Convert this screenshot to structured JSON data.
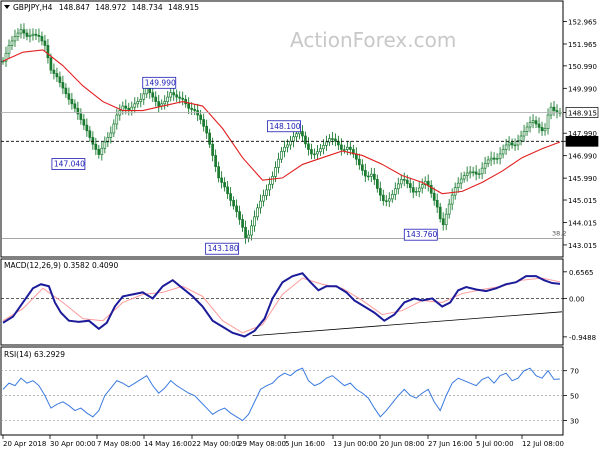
{
  "header": {
    "symbol": "GBPJPY,H4",
    "open": "148.847",
    "high": "148.972",
    "low": "148.734",
    "close": "148.915"
  },
  "watermark": "ActionForex.com",
  "colors": {
    "candle": "#1a7a30",
    "ma": "#e21f1f",
    "macd": "#1c1c9a",
    "signal": "#ff9b9b",
    "rsi": "#3a7ae0",
    "annotation_border": "#1c1cb4",
    "grid": "#000000"
  },
  "price_axis": {
    "ticks": [
      "152.965",
      "151.965",
      "150.990",
      "149.990",
      "148.915",
      "147.990",
      "147.630",
      "146.990",
      "145.990",
      "145.015",
      "144.015",
      "143.015"
    ],
    "current_price": "148.915",
    "level_price": "147.630"
  },
  "annotations": [
    {
      "label": "149.990"
    },
    {
      "label": "147.040"
    },
    {
      "label": "148.100"
    },
    {
      "label": "143.180"
    },
    {
      "label": "143.760"
    }
  ],
  "fib_label": "38.2",
  "macd": {
    "title": "MACD(12,26,9) 0.3582 0.4090",
    "ticks": [
      "0.6565",
      "0.00",
      "-0.9488"
    ]
  },
  "rsi": {
    "title": "RSI(14) 63.2929",
    "ticks": [
      "70",
      "50",
      "30"
    ]
  },
  "time_axis": {
    "labels": [
      "20 Apr 2018",
      "30 Apr 00:00",
      "7 May 08:00",
      "14 May 16:00",
      "22 May 00:00",
      "29 May 08:00",
      "5 Jun 16:00",
      "13 Jun 00:00",
      "20 Jun 08:00",
      "27 Jun 16:00",
      "5 Jul 00:00",
      "12 Jul 08:00"
    ]
  },
  "chart_data": {
    "type": "line",
    "price_path": [
      [
        0,
        151.2
      ],
      [
        6,
        151.9
      ],
      [
        12,
        152.3
      ],
      [
        18,
        152.6
      ],
      [
        24,
        152.3
      ],
      [
        30,
        152.4
      ],
      [
        36,
        152.3
      ],
      [
        42,
        151.9
      ],
      [
        48,
        150.8
      ],
      [
        54,
        150.5
      ],
      [
        60,
        150.0
      ],
      [
        66,
        149.5
      ],
      [
        72,
        149.1
      ],
      [
        78,
        148.6
      ],
      [
        84,
        148.1
      ],
      [
        90,
        147.5
      ],
      [
        96,
        147.04
      ],
      [
        102,
        147.6
      ],
      [
        108,
        148.0
      ],
      [
        114,
        148.8
      ],
      [
        120,
        149.2
      ],
      [
        126,
        149.0
      ],
      [
        132,
        149.3
      ],
      [
        138,
        149.5
      ],
      [
        144,
        149.99
      ],
      [
        150,
        149.6
      ],
      [
        156,
        149.2
      ],
      [
        162,
        149.4
      ],
      [
        168,
        149.8
      ],
      [
        174,
        149.6
      ],
      [
        180,
        149.5
      ],
      [
        186,
        149.1
      ],
      [
        192,
        149.0
      ],
      [
        198,
        148.6
      ],
      [
        204,
        148.0
      ],
      [
        210,
        147.0
      ],
      [
        216,
        146.0
      ],
      [
        222,
        145.6
      ],
      [
        228,
        145.0
      ],
      [
        234,
        144.5
      ],
      [
        240,
        143.8
      ],
      [
        244,
        143.18
      ],
      [
        250,
        144.0
      ],
      [
        256,
        144.8
      ],
      [
        262,
        145.3
      ],
      [
        268,
        145.8
      ],
      [
        274,
        146.6
      ],
      [
        280,
        147.3
      ],
      [
        286,
        147.5
      ],
      [
        292,
        147.9
      ],
      [
        298,
        148.1
      ],
      [
        304,
        147.4
      ],
      [
        310,
        147.0
      ],
      [
        316,
        147.2
      ],
      [
        322,
        147.5
      ],
      [
        328,
        147.8
      ],
      [
        334,
        147.6
      ],
      [
        340,
        147.2
      ],
      [
        346,
        147.4
      ],
      [
        352,
        147.0
      ],
      [
        358,
        146.5
      ],
      [
        364,
        146.0
      ],
      [
        370,
        146.2
      ],
      [
        376,
        145.4
      ],
      [
        382,
        144.9
      ],
      [
        388,
        145.1
      ],
      [
        394,
        145.6
      ],
      [
        400,
        146.0
      ],
      [
        406,
        145.7
      ],
      [
        412,
        145.3
      ],
      [
        418,
        145.6
      ],
      [
        424,
        145.9
      ],
      [
        430,
        145.2
      ],
      [
        436,
        144.6
      ],
      [
        440,
        143.76
      ],
      [
        446,
        144.7
      ],
      [
        452,
        145.5
      ],
      [
        458,
        145.9
      ],
      [
        464,
        146.2
      ],
      [
        470,
        146.3
      ],
      [
        476,
        146.1
      ],
      [
        482,
        146.6
      ],
      [
        488,
        146.9
      ],
      [
        494,
        146.8
      ],
      [
        500,
        147.2
      ],
      [
        506,
        147.6
      ],
      [
        512,
        147.4
      ],
      [
        518,
        147.8
      ],
      [
        524,
        148.2
      ],
      [
        530,
        148.6
      ],
      [
        536,
        148.3
      ],
      [
        542,
        148.0
      ],
      [
        548,
        149.2
      ],
      [
        554,
        148.9
      ],
      [
        558,
        148.915
      ]
    ],
    "ma_path": [
      [
        0,
        151.2
      ],
      [
        20,
        151.6
      ],
      [
        40,
        151.7
      ],
      [
        60,
        151.0
      ],
      [
        80,
        150.1
      ],
      [
        100,
        149.4
      ],
      [
        120,
        149.0
      ],
      [
        140,
        149.0
      ],
      [
        160,
        149.2
      ],
      [
        180,
        149.4
      ],
      [
        200,
        149.2
      ],
      [
        220,
        148.2
      ],
      [
        240,
        146.9
      ],
      [
        260,
        145.9
      ],
      [
        280,
        146.0
      ],
      [
        300,
        146.6
      ],
      [
        320,
        146.9
      ],
      [
        340,
        147.2
      ],
      [
        360,
        147.0
      ],
      [
        380,
        146.6
      ],
      [
        400,
        146.1
      ],
      [
        420,
        145.8
      ],
      [
        440,
        145.3
      ],
      [
        460,
        145.4
      ],
      [
        480,
        145.8
      ],
      [
        500,
        146.3
      ],
      [
        520,
        146.9
      ],
      [
        540,
        147.3
      ],
      [
        558,
        147.6
      ]
    ],
    "macd_path": [
      [
        0,
        -0.6
      ],
      [
        10,
        -0.45
      ],
      [
        20,
        -0.1
      ],
      [
        30,
        0.25
      ],
      [
        38,
        0.35
      ],
      [
        46,
        0.3
      ],
      [
        52,
        -0.1
      ],
      [
        58,
        -0.35
      ],
      [
        66,
        -0.55
      ],
      [
        76,
        -0.58
      ],
      [
        86,
        -0.55
      ],
      [
        96,
        -0.75
      ],
      [
        104,
        -0.6
      ],
      [
        112,
        -0.2
      ],
      [
        120,
        0.05
      ],
      [
        130,
        0.1
      ],
      [
        140,
        0.15
      ],
      [
        150,
        0.0
      ],
      [
        160,
        0.3
      ],
      [
        170,
        0.45
      ],
      [
        180,
        0.25
      ],
      [
        190,
        0.05
      ],
      [
        200,
        -0.2
      ],
      [
        210,
        -0.55
      ],
      [
        220,
        -0.7
      ],
      [
        230,
        -0.85
      ],
      [
        242,
        -0.94
      ],
      [
        252,
        -0.8
      ],
      [
        262,
        -0.5
      ],
      [
        270,
        0.0
      ],
      [
        280,
        0.4
      ],
      [
        290,
        0.55
      ],
      [
        300,
        0.62
      ],
      [
        308,
        0.4
      ],
      [
        316,
        0.2
      ],
      [
        324,
        0.3
      ],
      [
        334,
        0.3
      ],
      [
        344,
        0.15
      ],
      [
        352,
        -0.05
      ],
      [
        362,
        -0.2
      ],
      [
        372,
        -0.35
      ],
      [
        382,
        -0.55
      ],
      [
        392,
        -0.4
      ],
      [
        402,
        -0.1
      ],
      [
        412,
        0.0
      ],
      [
        420,
        -0.05
      ],
      [
        430,
        0.0
      ],
      [
        440,
        -0.2
      ],
      [
        448,
        -0.1
      ],
      [
        456,
        0.2
      ],
      [
        464,
        0.28
      ],
      [
        474,
        0.22
      ],
      [
        484,
        0.18
      ],
      [
        494,
        0.25
      ],
      [
        504,
        0.35
      ],
      [
        514,
        0.4
      ],
      [
        524,
        0.55
      ],
      [
        534,
        0.55
      ],
      [
        542,
        0.45
      ],
      [
        550,
        0.38
      ],
      [
        558,
        0.36
      ]
    ],
    "signal_path": [
      [
        0,
        -0.55
      ],
      [
        20,
        -0.25
      ],
      [
        40,
        0.25
      ],
      [
        60,
        -0.1
      ],
      [
        80,
        -0.5
      ],
      [
        100,
        -0.55
      ],
      [
        120,
        -0.1
      ],
      [
        140,
        0.1
      ],
      [
        160,
        0.15
      ],
      [
        180,
        0.3
      ],
      [
        200,
        0.05
      ],
      [
        220,
        -0.55
      ],
      [
        240,
        -0.85
      ],
      [
        260,
        -0.65
      ],
      [
        280,
        0.1
      ],
      [
        300,
        0.5
      ],
      [
        320,
        0.35
      ],
      [
        340,
        0.25
      ],
      [
        360,
        -0.05
      ],
      [
        380,
        -0.4
      ],
      [
        400,
        -0.3
      ],
      [
        420,
        -0.05
      ],
      [
        440,
        -0.1
      ],
      [
        460,
        0.12
      ],
      [
        480,
        0.22
      ],
      [
        500,
        0.3
      ],
      [
        520,
        0.45
      ],
      [
        540,
        0.5
      ],
      [
        558,
        0.41
      ]
    ],
    "rsi_path": [
      [
        0,
        55
      ],
      [
        6,
        60
      ],
      [
        12,
        58
      ],
      [
        18,
        64
      ],
      [
        24,
        60
      ],
      [
        30,
        62
      ],
      [
        36,
        58
      ],
      [
        42,
        50
      ],
      [
        48,
        40
      ],
      [
        54,
        43
      ],
      [
        60,
        45
      ],
      [
        66,
        42
      ],
      [
        72,
        38
      ],
      [
        78,
        40
      ],
      [
        84,
        36
      ],
      [
        90,
        33
      ],
      [
        96,
        38
      ],
      [
        102,
        50
      ],
      [
        108,
        56
      ],
      [
        114,
        62
      ],
      [
        120,
        60
      ],
      [
        126,
        57
      ],
      [
        132,
        60
      ],
      [
        138,
        63
      ],
      [
        144,
        66
      ],
      [
        150,
        58
      ],
      [
        156,
        52
      ],
      [
        162,
        56
      ],
      [
        168,
        62
      ],
      [
        174,
        58
      ],
      [
        180,
        55
      ],
      [
        186,
        52
      ],
      [
        192,
        50
      ],
      [
        198,
        45
      ],
      [
        204,
        40
      ],
      [
        210,
        35
      ],
      [
        216,
        38
      ],
      [
        222,
        40
      ],
      [
        228,
        36
      ],
      [
        234,
        33
      ],
      [
        240,
        30
      ],
      [
        246,
        35
      ],
      [
        252,
        45
      ],
      [
        258,
        55
      ],
      [
        264,
        58
      ],
      [
        270,
        60
      ],
      [
        276,
        65
      ],
      [
        282,
        68
      ],
      [
        288,
        66
      ],
      [
        294,
        70
      ],
      [
        300,
        72
      ],
      [
        306,
        62
      ],
      [
        312,
        58
      ],
      [
        318,
        60
      ],
      [
        324,
        64
      ],
      [
        330,
        66
      ],
      [
        336,
        62
      ],
      [
        342,
        58
      ],
      [
        348,
        60
      ],
      [
        354,
        55
      ],
      [
        360,
        52
      ],
      [
        366,
        48
      ],
      [
        372,
        40
      ],
      [
        378,
        33
      ],
      [
        384,
        38
      ],
      [
        390,
        44
      ],
      [
        396,
        50
      ],
      [
        402,
        55
      ],
      [
        408,
        50
      ],
      [
        414,
        48
      ],
      [
        420,
        52
      ],
      [
        426,
        55
      ],
      [
        432,
        45
      ],
      [
        438,
        38
      ],
      [
        444,
        50
      ],
      [
        450,
        60
      ],
      [
        456,
        64
      ],
      [
        462,
        62
      ],
      [
        468,
        60
      ],
      [
        474,
        58
      ],
      [
        480,
        63
      ],
      [
        486,
        65
      ],
      [
        492,
        60
      ],
      [
        498,
        66
      ],
      [
        504,
        68
      ],
      [
        510,
        62
      ],
      [
        516,
        64
      ],
      [
        522,
        70
      ],
      [
        528,
        72
      ],
      [
        534,
        66
      ],
      [
        540,
        64
      ],
      [
        546,
        70
      ],
      [
        552,
        63
      ],
      [
        558,
        63.3
      ]
    ],
    "price_range": [
      142.7,
      153.3
    ],
    "macd_range": [
      -1.1,
      0.8
    ],
    "rsi_range": [
      20,
      85
    ],
    "trendline_macd": [
      [
        250,
        -0.92
      ],
      [
        560,
        -0.33
      ]
    ]
  }
}
